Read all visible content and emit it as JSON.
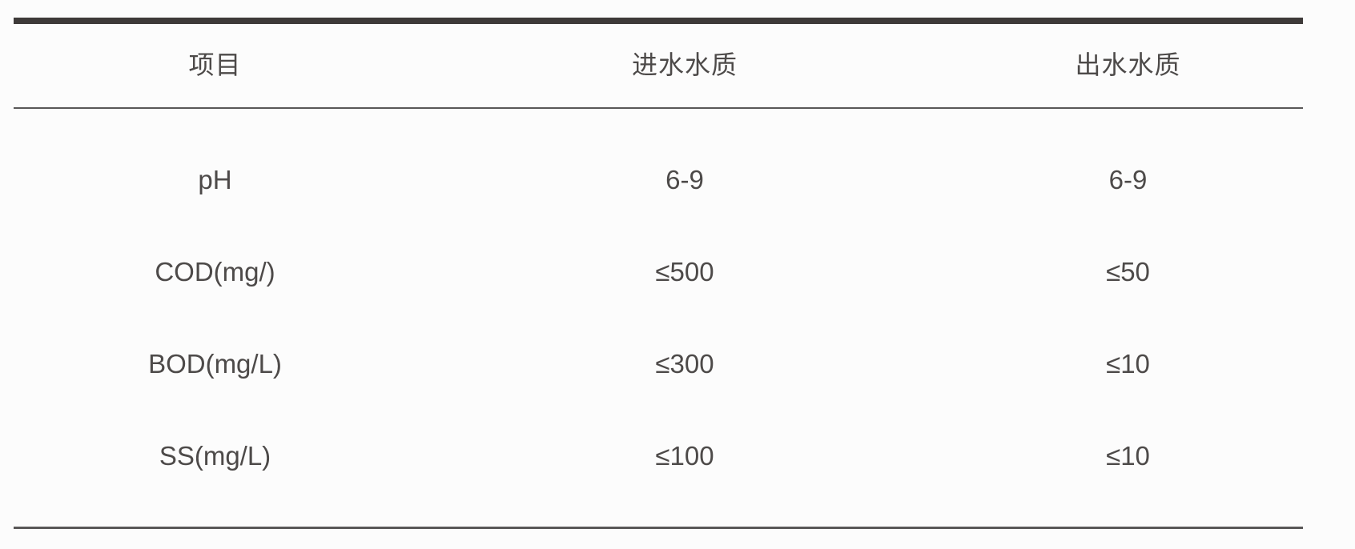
{
  "table": {
    "columns": {
      "item": "项目",
      "influent": "进水水质",
      "effluent": "出水水质"
    },
    "rows": [
      {
        "item": "pH",
        "influent": "6-9",
        "effluent": "6-9"
      },
      {
        "item": "COD(mg/)",
        "influent": "≤500",
        "effluent": "≤50"
      },
      {
        "item": "BOD(mg/L)",
        "influent": "≤300",
        "effluent": "≤10"
      },
      {
        "item": "SS(mg/L)",
        "influent": "≤100",
        "effluent": "≤10"
      }
    ]
  },
  "colors": {
    "background": "#fcfcfc",
    "text": "#4d4a49",
    "rule_heavy": "#3e3a39",
    "rule_light": "#595757"
  }
}
